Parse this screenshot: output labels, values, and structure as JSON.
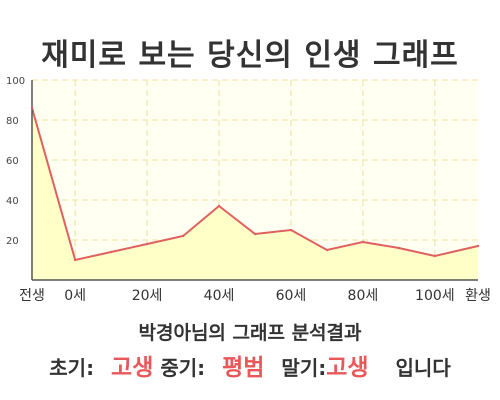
{
  "title": "재미로 보는 당신의 인생 그래프",
  "caption": "박경아님의 그래프 분석결과",
  "result": {
    "early_label": "초기:",
    "early_value": "고생",
    "middle_label": "중기:",
    "middle_value": "평범",
    "late_label": "말기:",
    "late_value": "고생",
    "suffix": "입니다"
  },
  "chart_data": {
    "type": "area",
    "title": "재미로 보는 당신의 인생 그래프",
    "xlabel": "",
    "ylabel": "",
    "x": [
      -12,
      0,
      10,
      20,
      30,
      40,
      50,
      60,
      70,
      80,
      90,
      100,
      112
    ],
    "values": [
      86,
      10,
      14,
      18,
      22,
      37,
      23,
      25,
      15,
      19,
      16,
      12,
      17
    ],
    "xticks": [
      {
        "x": -12,
        "label": "전생"
      },
      {
        "x": 0,
        "label": "0세"
      },
      {
        "x": 20,
        "label": "20세"
      },
      {
        "x": 40,
        "label": "40세"
      },
      {
        "x": 60,
        "label": "60세"
      },
      {
        "x": 80,
        "label": "80세"
      },
      {
        "x": 100,
        "label": "100세"
      },
      {
        "x": 112,
        "label": "환생"
      }
    ],
    "yticks": [
      20,
      40,
      60,
      80,
      100
    ],
    "ylim": [
      0,
      100
    ],
    "xlim": [
      -12,
      112
    ],
    "grid": true,
    "colors": {
      "line": "#e06060",
      "fill": "#ffffc8",
      "grid": "#f0e0a0",
      "background": "#fffff2"
    }
  }
}
